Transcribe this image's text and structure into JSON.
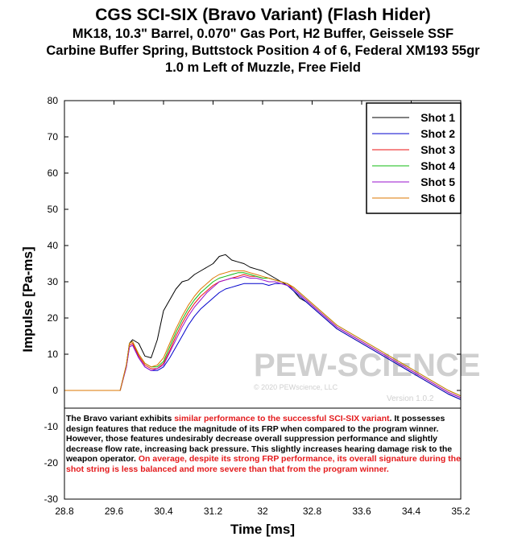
{
  "titles": {
    "line1": "CGS SCI-SIX (Bravo Variant) (Flash Hider)",
    "line2": "MK18, 10.3\" Barrel, 0.070\" Gas Port, H2 Buffer, Geissele SSF",
    "line3": "Carbine Buffer Spring, Buttstock Position 4 of 6, Federal XM193 55gr",
    "line4": "1.0 m Left of Muzzle, Free Field"
  },
  "note": {
    "p1": "The Bravo variant exhibits ",
    "p2": "similar performance to the successful SCI-SIX variant",
    "p3": ".  It possesses design features that reduce the magnitude of its FRP when compared to the program winner.  However, those features undesirably decrease overall suppression performance and slightly decrease flow rate, increasing back pressure.  This slightly increases hearing damage risk to the weapon operator.  ",
    "p4": "On average, despite its strong FRP performance, its overall signature during the shot string is less balanced and more severe than that from the program winner."
  },
  "watermark": {
    "brand": "PEW-SCIENCE",
    "copyright": "© 2020 PEWscience, LLC",
    "version": "Version 1.0.2"
  },
  "chart_data": {
    "type": "line",
    "xlabel": "Time [ms]",
    "ylabel": "Impulse [Pa-ms]",
    "xlim": [
      28.8,
      35.2
    ],
    "ylim": [
      -30,
      80
    ],
    "xticks": [
      "28.8",
      "29.6",
      "30.4",
      "31.2",
      "32",
      "32.8",
      "33.6",
      "34.4",
      "35.2"
    ],
    "yticks": [
      "-30",
      "-20",
      "-10",
      "0",
      "10",
      "20",
      "30",
      "40",
      "50",
      "60",
      "70",
      "80"
    ],
    "grid": false,
    "legend_position": "top-right",
    "series": [
      {
        "name": "Shot 1",
        "color": "#000000",
        "x": [
          28.8,
          29.7,
          29.8,
          29.85,
          29.9,
          30.0,
          30.1,
          30.2,
          30.3,
          30.4,
          30.5,
          30.6,
          30.7,
          30.8,
          30.9,
          31.0,
          31.1,
          31.2,
          31.3,
          31.4,
          31.5,
          31.6,
          31.7,
          31.8,
          31.9,
          32.0,
          32.1,
          32.2,
          32.3,
          32.4,
          32.5,
          32.6,
          32.7,
          32.8,
          33.0,
          33.2,
          33.4,
          33.6,
          33.8,
          34.0,
          34.2,
          34.4,
          34.6,
          34.8,
          35.0,
          35.2
        ],
        "y": [
          0,
          0,
          7,
          13,
          14,
          13,
          9.5,
          9,
          14,
          22,
          25,
          28,
          30,
          30.5,
          32,
          33,
          34,
          35,
          37,
          37.5,
          36,
          35.5,
          35,
          34,
          33.5,
          33,
          32,
          31,
          30,
          29,
          27.5,
          25.5,
          24.5,
          23,
          20,
          17,
          15,
          13,
          11,
          9,
          7,
          5,
          3,
          1,
          -1,
          -2.5
        ]
      },
      {
        "name": "Shot 2",
        "color": "#0000cc",
        "x": [
          28.8,
          29.7,
          29.8,
          29.85,
          29.9,
          30.0,
          30.1,
          30.2,
          30.3,
          30.4,
          30.5,
          30.6,
          30.7,
          30.8,
          30.9,
          31.0,
          31.1,
          31.2,
          31.3,
          31.4,
          31.5,
          31.6,
          31.7,
          31.8,
          31.9,
          32.0,
          32.1,
          32.2,
          32.3,
          32.4,
          32.5,
          32.6,
          32.7,
          32.8,
          33.0,
          33.2,
          33.4,
          33.6,
          33.8,
          34.0,
          34.2,
          34.4,
          34.6,
          34.8,
          35.0,
          35.2
        ],
        "y": [
          0,
          0,
          6.5,
          12,
          12.5,
          9,
          6.5,
          5.5,
          5.5,
          6.5,
          9,
          12,
          15,
          18,
          20.5,
          22.5,
          24,
          25.5,
          27,
          28,
          28.5,
          29,
          29.5,
          29.5,
          29.5,
          29.5,
          29,
          29.5,
          29.5,
          29,
          27.5,
          26,
          24.5,
          23,
          20,
          17,
          15,
          13,
          11,
          9,
          7,
          5,
          3,
          1,
          -1,
          -2.5
        ]
      },
      {
        "name": "Shot 3",
        "color": "#ee1111",
        "x": [
          28.8,
          29.7,
          29.8,
          29.85,
          29.9,
          30.0,
          30.1,
          30.2,
          30.3,
          30.4,
          30.5,
          30.6,
          30.7,
          30.8,
          30.9,
          31.0,
          31.1,
          31.2,
          31.3,
          31.4,
          31.5,
          31.6,
          31.7,
          31.8,
          31.9,
          32.0,
          32.1,
          32.2,
          32.3,
          32.4,
          32.5,
          32.6,
          32.7,
          32.8,
          33.0,
          33.2,
          33.4,
          33.6,
          33.8,
          34.0,
          34.2,
          34.4,
          34.6,
          34.8,
          35.0,
          35.2
        ],
        "y": [
          0,
          0,
          7,
          12.5,
          13,
          9.5,
          7,
          6,
          6,
          7.5,
          11,
          15,
          18.5,
          21.5,
          24,
          26,
          27.5,
          29,
          30,
          30.5,
          31,
          31.5,
          32,
          31.5,
          31.5,
          31,
          31,
          30.5,
          30,
          29.5,
          28,
          26.5,
          25,
          23.5,
          20.5,
          17.5,
          15.5,
          13.5,
          11.5,
          9.5,
          7.5,
          5.5,
          3.5,
          1.5,
          -0.5,
          -2
        ]
      },
      {
        "name": "Shot 4",
        "color": "#11bb11",
        "x": [
          28.8,
          29.7,
          29.8,
          29.85,
          29.9,
          30.0,
          30.1,
          30.2,
          30.3,
          30.4,
          30.5,
          30.6,
          30.7,
          30.8,
          30.9,
          31.0,
          31.1,
          31.2,
          31.3,
          31.4,
          31.5,
          31.6,
          31.7,
          31.8,
          31.9,
          32.0,
          32.1,
          32.2,
          32.3,
          32.4,
          32.5,
          32.6,
          32.7,
          32.8,
          33.0,
          33.2,
          33.4,
          33.6,
          33.8,
          34.0,
          34.2,
          34.4,
          34.6,
          34.8,
          35.0,
          35.2
        ],
        "y": [
          0,
          0,
          7,
          13,
          13.5,
          10,
          7.5,
          6.5,
          6.5,
          8,
          12,
          16,
          19.5,
          22.5,
          25,
          27,
          28.5,
          30,
          31,
          31.5,
          32,
          32.5,
          32.5,
          32,
          31.5,
          31,
          31,
          30.5,
          30,
          29.5,
          28.5,
          27,
          25.5,
          24,
          21,
          18,
          16,
          14,
          12,
          10,
          8,
          6,
          4,
          2,
          0,
          -1.5
        ]
      },
      {
        "name": "Shot 5",
        "color": "#9911cc",
        "x": [
          28.8,
          29.7,
          29.8,
          29.85,
          29.9,
          30.0,
          30.1,
          30.2,
          30.3,
          30.4,
          30.5,
          30.6,
          30.7,
          30.8,
          30.9,
          31.0,
          31.1,
          31.2,
          31.3,
          31.4,
          31.5,
          31.6,
          31.7,
          31.8,
          31.9,
          32.0,
          32.1,
          32.2,
          32.3,
          32.4,
          32.5,
          32.6,
          32.7,
          32.8,
          33.0,
          33.2,
          33.4,
          33.6,
          33.8,
          34.0,
          34.2,
          34.4,
          34.6,
          34.8,
          35.0,
          35.2
        ],
        "y": [
          0,
          0,
          6.5,
          12,
          12.5,
          9,
          6.5,
          5.5,
          6,
          7,
          10.5,
          14,
          17.5,
          20.5,
          23,
          25,
          27,
          28.5,
          30,
          30.5,
          31,
          31,
          31.5,
          31,
          31,
          30.5,
          30,
          30,
          29.5,
          29,
          28,
          26.5,
          25,
          23.5,
          20.5,
          17.5,
          15.5,
          13.5,
          11.5,
          9.5,
          7.5,
          5.5,
          3.5,
          1.5,
          -0.5,
          -2
        ]
      },
      {
        "name": "Shot 6",
        "color": "#dd7700",
        "x": [
          28.8,
          29.7,
          29.8,
          29.85,
          29.9,
          30.0,
          30.1,
          30.2,
          30.3,
          30.4,
          30.5,
          30.6,
          30.7,
          30.8,
          30.9,
          31.0,
          31.1,
          31.2,
          31.3,
          31.4,
          31.5,
          31.6,
          31.7,
          31.8,
          31.9,
          32.0,
          32.1,
          32.2,
          32.3,
          32.4,
          32.5,
          32.6,
          32.7,
          32.8,
          33.0,
          33.2,
          33.4,
          33.6,
          33.8,
          34.0,
          34.2,
          34.4,
          34.6,
          34.8,
          35.0,
          35.2
        ],
        "y": [
          0,
          0,
          7,
          13,
          13.5,
          10,
          7.5,
          6.5,
          7,
          9,
          13,
          17,
          20.5,
          23.5,
          26,
          28,
          29.5,
          31,
          32,
          32.5,
          33,
          33,
          33,
          32.5,
          32,
          31.5,
          31,
          30.5,
          30,
          29.5,
          28.5,
          27,
          25.5,
          24,
          21,
          18,
          16,
          14,
          12,
          10,
          8,
          6,
          4,
          2,
          0,
          -1.5
        ]
      }
    ]
  }
}
